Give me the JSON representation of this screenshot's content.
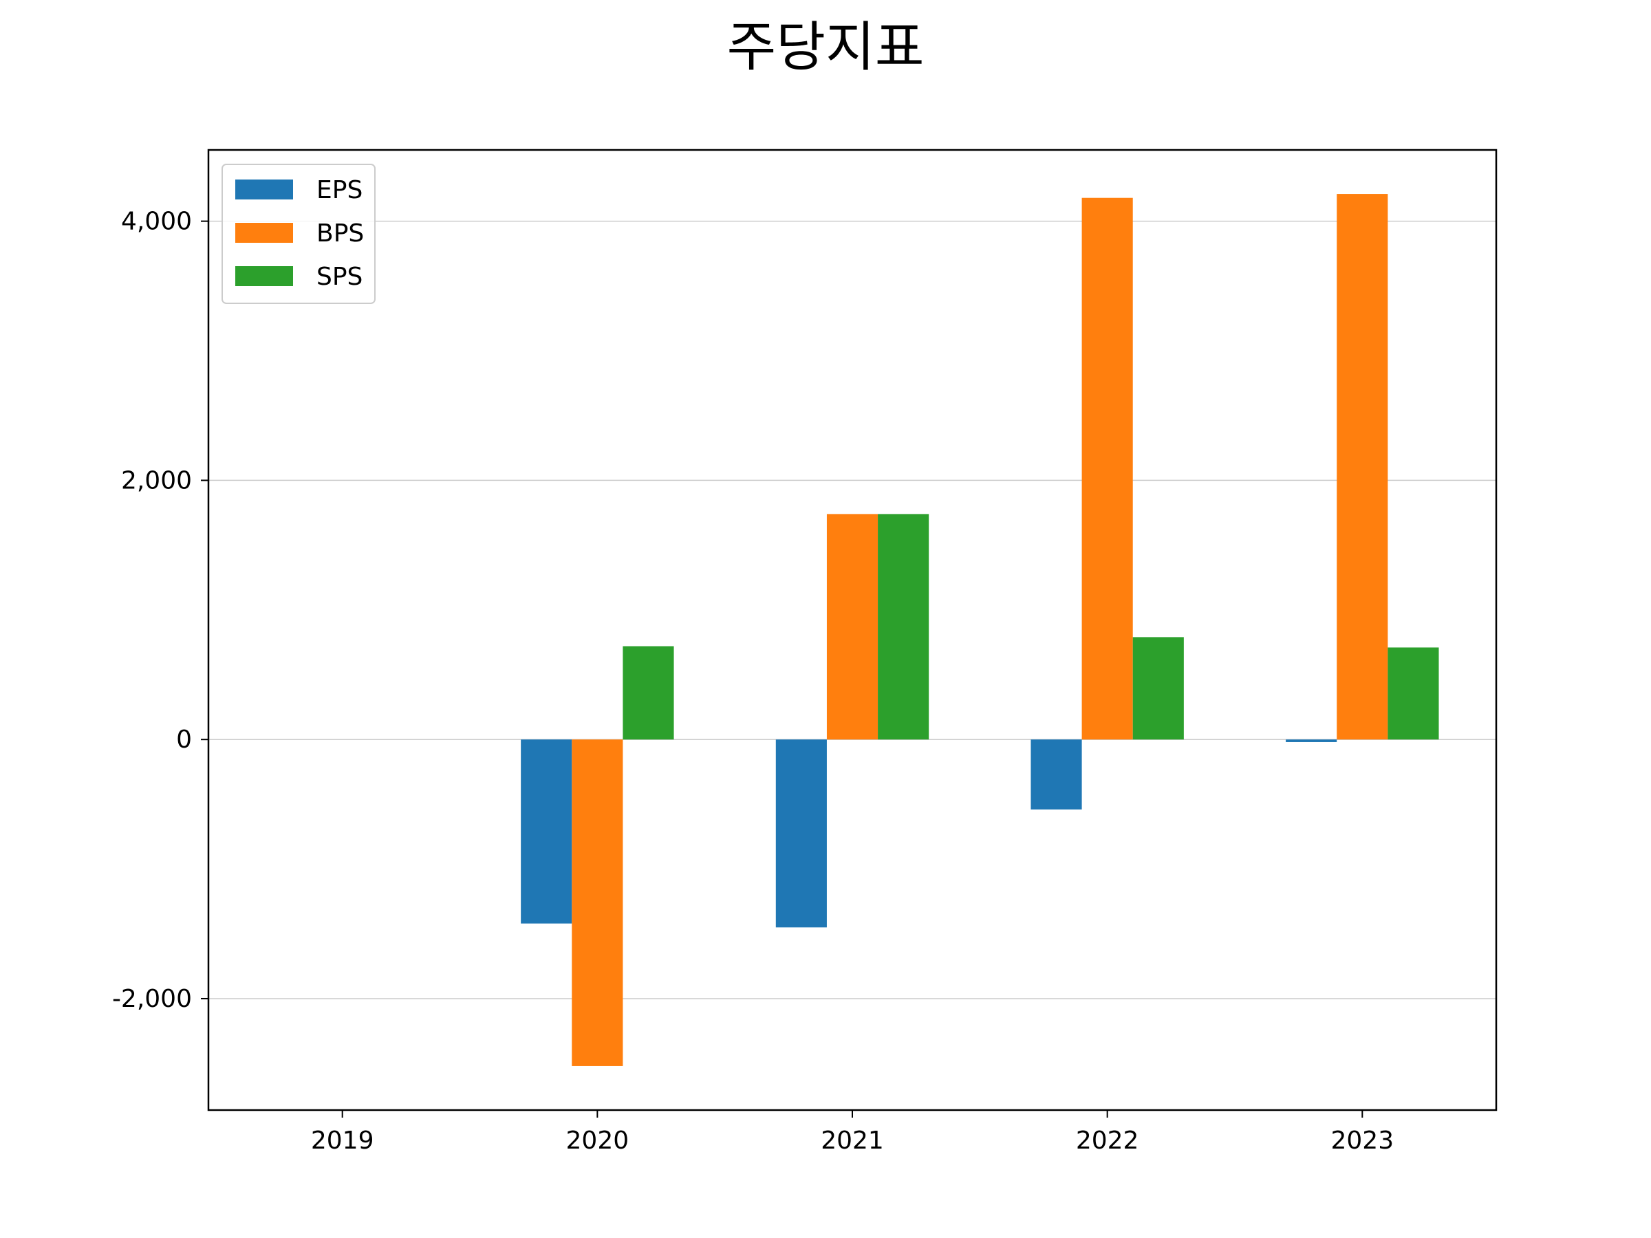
{
  "chart_data": {
    "type": "bar",
    "title": "주당지표",
    "xlabel": "",
    "ylabel": "",
    "categories": [
      "2019",
      "2020",
      "2021",
      "2022",
      "2023"
    ],
    "series": [
      {
        "name": "EPS",
        "color": "#1f77b4",
        "values": [
          0,
          -1420,
          -1450,
          -540,
          -20
        ]
      },
      {
        "name": "BPS",
        "color": "#ff7f0e",
        "values": [
          0,
          -2520,
          1740,
          4180,
          4210
        ]
      },
      {
        "name": "SPS",
        "color": "#2ca02c",
        "values": [
          0,
          720,
          1740,
          790,
          710
        ]
      }
    ],
    "ylim": [
      -2860,
      4550
    ],
    "yticks": [
      -2000,
      0,
      2000,
      4000
    ],
    "ytick_labels": [
      "-2,000",
      "0",
      "2,000",
      "4,000"
    ],
    "grid": "y",
    "legend_position": "top-left"
  }
}
